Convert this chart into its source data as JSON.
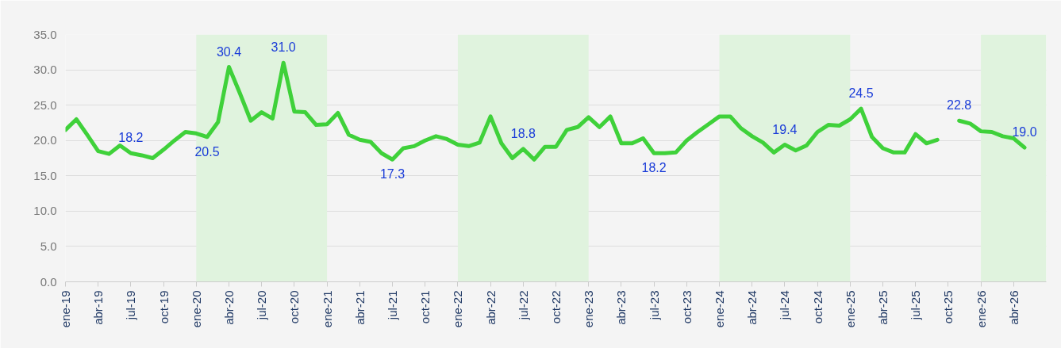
{
  "chart_data": {
    "type": "line",
    "x": [
      "2019-01",
      "2019-02",
      "2019-03",
      "2019-04",
      "2019-05",
      "2019-06",
      "2019-07",
      "2019-08",
      "2019-09",
      "2019-10",
      "2019-11",
      "2019-12",
      "2020-01",
      "2020-02",
      "2020-03",
      "2020-04",
      "2020-05",
      "2020-06",
      "2020-07",
      "2020-08",
      "2020-09",
      "2020-10",
      "2020-11",
      "2020-12",
      "2021-01",
      "2021-02",
      "2021-03",
      "2021-04",
      "2021-05",
      "2021-06",
      "2021-07",
      "2021-08",
      "2021-09",
      "2021-10",
      "2021-11",
      "2021-12",
      "2022-01",
      "2022-02",
      "2022-03",
      "2022-04",
      "2022-05",
      "2022-06",
      "2022-07",
      "2022-08",
      "2022-09",
      "2022-10",
      "2022-11",
      "2022-12",
      "2023-01",
      "2023-02",
      "2023-03",
      "2023-04",
      "2023-05",
      "2023-06",
      "2023-07",
      "2023-08",
      "2023-09",
      "2023-10",
      "2023-11",
      "2023-12",
      "2024-01",
      "2024-02",
      "2024-03",
      "2024-04",
      "2024-05",
      "2024-06",
      "2024-07",
      "2024-08",
      "2024-09",
      "2024-10",
      "2024-11",
      "2024-12",
      "2025-01",
      "2025-02",
      "2025-03",
      "2025-04",
      "2025-05",
      "2025-06",
      "2025-07",
      "2025-08",
      "2025-09",
      "2025-10",
      "2025-11",
      "2025-12",
      "2026-01",
      "2026-02",
      "2026-03",
      "2026-04",
      "2026-05"
    ],
    "series": [
      {
        "color": "#3fd13a",
        "values": [
          21.5,
          23.0,
          20.8,
          18.5,
          18.1,
          19.3,
          18.2,
          17.9,
          17.5,
          18.7,
          20.0,
          21.2,
          21.0,
          20.5,
          22.6,
          30.4,
          26.7,
          22.8,
          24.0,
          23.1,
          31.0,
          24.1,
          24.0,
          22.2,
          22.3,
          23.9,
          20.8,
          20.1,
          19.8,
          18.2,
          17.3,
          18.9,
          19.2,
          20.0,
          20.6,
          20.2,
          19.4,
          19.2,
          19.7,
          23.4,
          19.6,
          17.5,
          18.8,
          17.3,
          19.1,
          19.1,
          21.5,
          21.9,
          23.3,
          21.9,
          23.4,
          19.6,
          19.6,
          20.3,
          18.2,
          18.2,
          18.3,
          20.0,
          21.2,
          22.3,
          23.4,
          23.4,
          21.7,
          20.6,
          19.7,
          18.3,
          19.4,
          18.6,
          19.3,
          21.2,
          22.2,
          22.1,
          23.0,
          24.5,
          20.5,
          18.9,
          18.3,
          18.3,
          20.9,
          19.6,
          20.1,
          null,
          22.8,
          22.4,
          21.3,
          21.2,
          20.6,
          20.3,
          19.0
        ]
      }
    ],
    "xlim": [
      "2019-01",
      "2026-07"
    ],
    "xticks": [
      {
        "value": "2019-01",
        "label": "ene-19"
      },
      {
        "value": "2019-04",
        "label": "abr-19"
      },
      {
        "value": "2019-07",
        "label": "jul-19"
      },
      {
        "value": "2019-10",
        "label": "oct-19"
      },
      {
        "value": "2020-01",
        "label": "ene-20"
      },
      {
        "value": "2020-04",
        "label": "abr-20"
      },
      {
        "value": "2020-07",
        "label": "jul-20"
      },
      {
        "value": "2020-10",
        "label": "oct-20"
      },
      {
        "value": "2021-01",
        "label": "ene-21"
      },
      {
        "value": "2021-04",
        "label": "abr-21"
      },
      {
        "value": "2021-07",
        "label": "jul-21"
      },
      {
        "value": "2021-10",
        "label": "oct-21"
      },
      {
        "value": "2022-01",
        "label": "ene-22"
      },
      {
        "value": "2022-04",
        "label": "abr-22"
      },
      {
        "value": "2022-07",
        "label": "jul-22"
      },
      {
        "value": "2022-10",
        "label": "oct-22"
      },
      {
        "value": "2023-01",
        "label": "ene-23"
      },
      {
        "value": "2023-04",
        "label": "abr-23"
      },
      {
        "value": "2023-07",
        "label": "jul-23"
      },
      {
        "value": "2023-10",
        "label": "oct-23"
      },
      {
        "value": "2024-01",
        "label": "ene-24"
      },
      {
        "value": "2024-04",
        "label": "abr-24"
      },
      {
        "value": "2024-07",
        "label": "jul-24"
      },
      {
        "value": "2024-10",
        "label": "oct-24"
      },
      {
        "value": "2025-01",
        "label": "ene-25"
      },
      {
        "value": "2025-04",
        "label": "abr-25"
      },
      {
        "value": "2025-07",
        "label": "jul-25"
      },
      {
        "value": "2025-10",
        "label": "oct-25"
      },
      {
        "value": "2026-01",
        "label": "ene-26"
      },
      {
        "value": "2026-04",
        "label": "abr-26"
      }
    ],
    "ylim": [
      0,
      35
    ],
    "yticks": [
      {
        "value": 0,
        "label": "0.0"
      },
      {
        "value": 5,
        "label": "5.0"
      },
      {
        "value": 10,
        "label": "10.0"
      },
      {
        "value": 15,
        "label": "15.0"
      },
      {
        "value": 20,
        "label": "20.0"
      },
      {
        "value": 25,
        "label": "25.0"
      },
      {
        "value": 30,
        "label": "30.0"
      },
      {
        "value": 35,
        "label": "35.0"
      }
    ],
    "grid": "y",
    "bands": [
      {
        "axis": "x",
        "from": "2020-01",
        "to": "2021-01",
        "color": "#e0f3de"
      },
      {
        "axis": "x",
        "from": "2022-01",
        "to": "2023-01",
        "color": "#e0f3de"
      },
      {
        "axis": "x",
        "from": "2024-01",
        "to": "2025-01",
        "color": "#e0f3de"
      },
      {
        "axis": "x",
        "from": "2026-01",
        "to": "2026-07",
        "color": "#e0f3de"
      }
    ],
    "annotations": [
      {
        "text": "18.2",
        "x": "2019-07",
        "y": 18.2
      },
      {
        "text": "20.5",
        "x": "2020-02",
        "y": 20.5
      },
      {
        "text": "30.4",
        "x": "2020-04",
        "y": 30.4
      },
      {
        "text": "31.0",
        "x": "2020-09",
        "y": 31.0
      },
      {
        "text": "17.3",
        "x": "2021-07",
        "y": 17.3
      },
      {
        "text": "18.8",
        "x": "2022-07",
        "y": 18.8
      },
      {
        "text": "18.2",
        "x": "2023-07",
        "y": 18.2
      },
      {
        "text": "19.4",
        "x": "2024-07",
        "y": 19.4
      },
      {
        "text": "24.5",
        "x": "2025-02",
        "y": 24.5
      },
      {
        "text": "22.8",
        "x": "2025-11",
        "y": 22.8
      },
      {
        "text": "19.0",
        "x": "2026-05",
        "y": 19.0
      }
    ]
  }
}
